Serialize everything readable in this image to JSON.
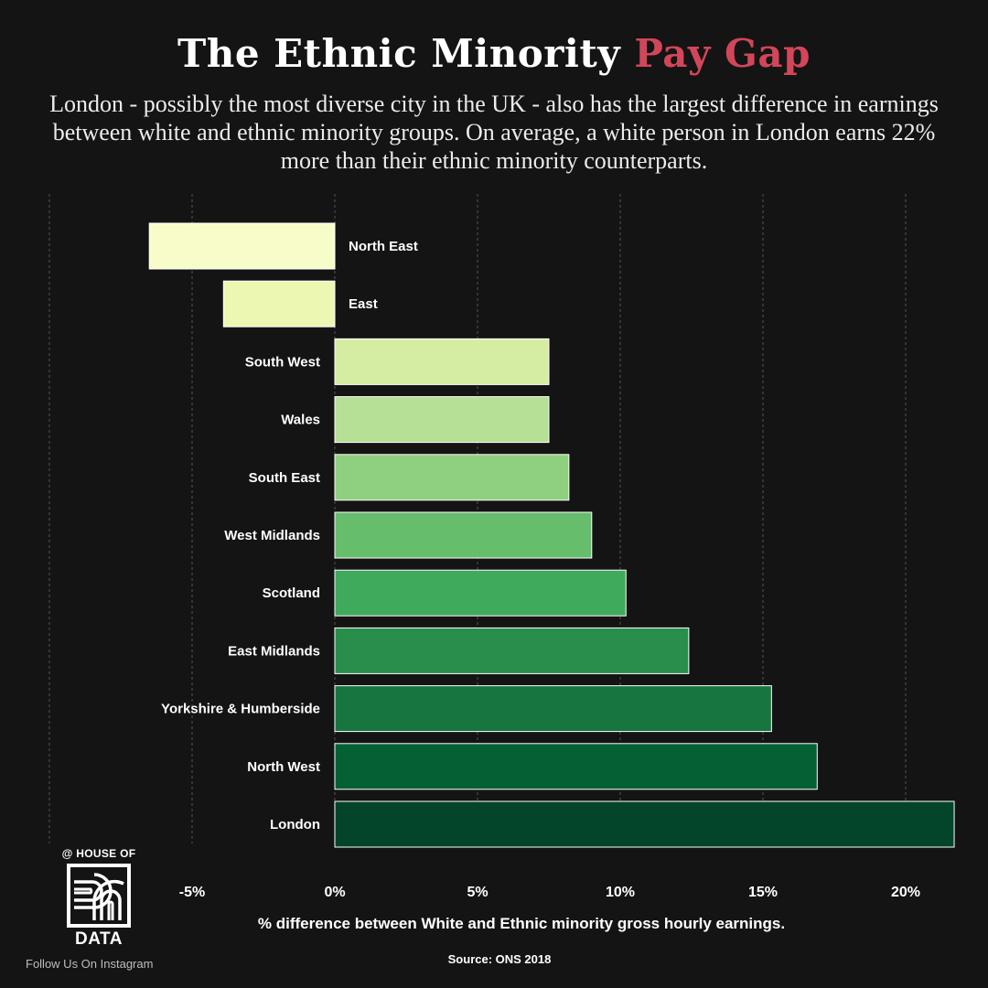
{
  "header": {
    "title_main": "The Ethnic Minority",
    "title_accent": "Pay Gap",
    "subtitle": "London - possibly the most diverse city in the UK - also has the largest difference in earnings between white and ethnic minority groups. On average, a white person in London earns 22% more than their ethnic minority counterparts."
  },
  "chart_data": {
    "type": "bar",
    "orientation": "horizontal",
    "categories": [
      "North East",
      "East",
      "South West",
      "Wales",
      "South East",
      "West Midlands",
      "Scotland",
      "East Midlands",
      "Yorkshire & Humberside",
      "North West",
      "London"
    ],
    "values": [
      -6.5,
      -3.9,
      7.5,
      7.5,
      8.2,
      9.0,
      10.2,
      12.4,
      15.3,
      16.9,
      21.7
    ],
    "colors": [
      "#f7fcc9",
      "#ecf7b1",
      "#d5eda2",
      "#b6e095",
      "#8ecf80",
      "#66bd6c",
      "#40aa5c",
      "#298e4b",
      "#17763f",
      "#056133",
      "#02452a"
    ],
    "xlabel": "% difference between White and Ethnic minority gross hourly earnings.",
    "xlim": [
      -10,
      22
    ],
    "xticks": [
      -5,
      0,
      5,
      10,
      15,
      20
    ],
    "xtick_labels": [
      "-5%",
      "0%",
      "5%",
      "10%",
      "15%",
      "20%"
    ],
    "gridlines": [
      -10,
      -5,
      0,
      5,
      10,
      15,
      20
    ],
    "grid": true,
    "source": "Source: ONS 2018"
  },
  "branding": {
    "logo_top": "@ HOUSE OF",
    "logo_bottom": "DATA",
    "follow": "Follow Us On Instagram"
  },
  "colors": {
    "background": "#141414",
    "title_accent": "#d2465a"
  }
}
